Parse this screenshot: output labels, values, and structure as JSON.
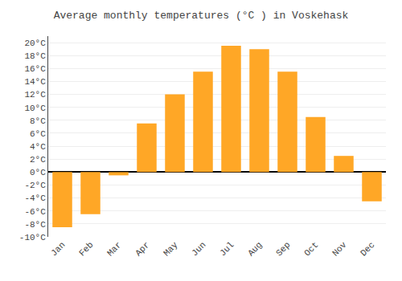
{
  "chart_data": {
    "type": "bar",
    "title": "Average monthly temperatures (°C ) in Voskehask",
    "categories": [
      "Jan",
      "Feb",
      "Mar",
      "Apr",
      "May",
      "Jun",
      "Jul",
      "Aug",
      "Sep",
      "Oct",
      "Nov",
      "Dec"
    ],
    "values": [
      -8.5,
      -6.5,
      -0.5,
      7.5,
      12.0,
      15.5,
      19.5,
      19.0,
      15.5,
      8.5,
      2.5,
      -4.5
    ],
    "color": "#FFA726",
    "ylim": [
      -10,
      21
    ],
    "yticks": [
      {
        "value": -10,
        "label": "-10°C"
      },
      {
        "value": -8,
        "label": "-8°C"
      },
      {
        "value": -6,
        "label": "-6°C"
      },
      {
        "value": -4,
        "label": "-4°C"
      },
      {
        "value": -2,
        "label": "-2°C"
      },
      {
        "value": 0,
        "label": "0°C"
      },
      {
        "value": 2,
        "label": "2°C"
      },
      {
        "value": 4,
        "label": "4°C"
      },
      {
        "value": 6,
        "label": "6°C"
      },
      {
        "value": 8,
        "label": "8°C"
      },
      {
        "value": 10,
        "label": "10°C"
      },
      {
        "value": 12,
        "label": "12°C"
      },
      {
        "value": 14,
        "label": "14°C"
      },
      {
        "value": 16,
        "label": "16°C"
      },
      {
        "value": 18,
        "label": "18°C"
      },
      {
        "value": 20,
        "label": "20°C"
      }
    ],
    "grid": true
  }
}
